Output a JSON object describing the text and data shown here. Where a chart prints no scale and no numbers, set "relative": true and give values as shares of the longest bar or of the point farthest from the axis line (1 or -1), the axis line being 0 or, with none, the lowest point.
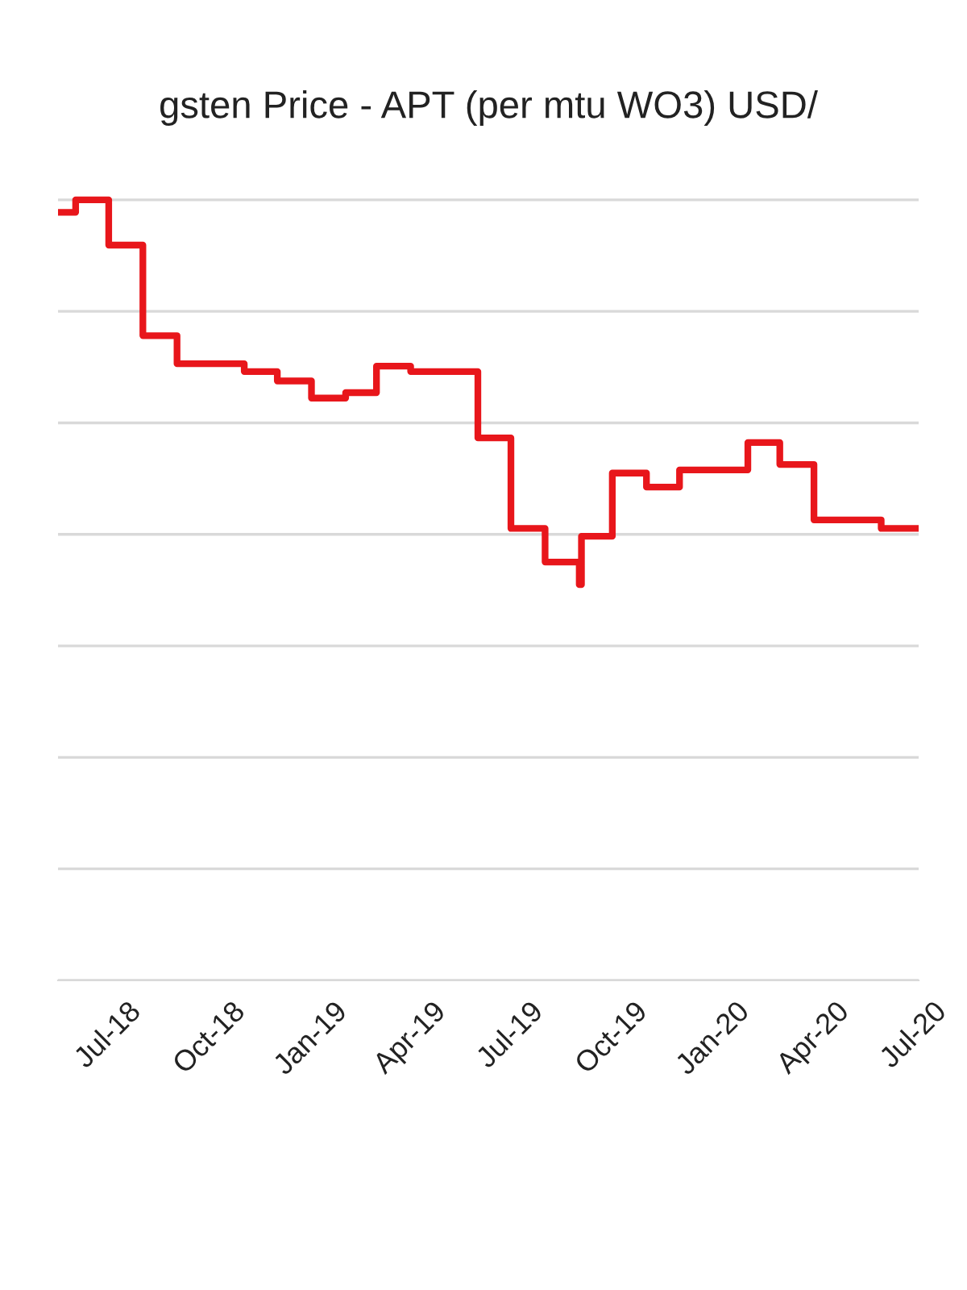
{
  "chart_data": {
    "type": "step",
    "title": "gsten Price - APT (per mtu WO3) USD/",
    "relative": true,
    "x": [
      "2018-05-16",
      "2018-06-01",
      "2018-07-01",
      "2018-08-01",
      "2018-09-01",
      "2018-11-01",
      "2018-12-01",
      "2019-01-01",
      "2019-02-01",
      "2019-03-01",
      "2019-04-01",
      "2019-06-01",
      "2019-07-01",
      "2019-08-01",
      "2019-09-01",
      "2019-09-03",
      "2019-10-01",
      "2019-11-01",
      "2019-12-01",
      "2020-02-01",
      "2020-03-01",
      "2020-04-01",
      "2020-06-01",
      "2020-07-05"
    ],
    "series": [
      {
        "color": "#e8161b",
        "values": [
          0.984,
          1,
          0.942,
          0.826,
          0.79,
          0.78,
          0.768,
          0.746,
          0.753,
          0.787,
          0.78,
          0.695,
          0.579,
          0.536,
          0.507,
          0.569,
          0.65,
          0.632,
          0.654,
          0.689,
          0.661,
          0.59,
          0.579,
          0.579
        ]
      }
    ],
    "xlim": [
      "2018-05-16",
      "2020-07-05"
    ],
    "xticks": [
      {
        "value": "2018-07-01",
        "label": "Jul-18"
      },
      {
        "value": "2018-10-01",
        "label": "Oct-18"
      },
      {
        "value": "2019-01-01",
        "label": "Jan-19"
      },
      {
        "value": "2019-04-01",
        "label": "Apr-19"
      },
      {
        "value": "2019-07-01",
        "label": "Jul-19"
      },
      {
        "value": "2019-10-01",
        "label": "Oct-19"
      },
      {
        "value": "2020-01-01",
        "label": "Jan-20"
      },
      {
        "value": "2020-04-01",
        "label": "Apr-20"
      },
      {
        "value": "2020-07-01",
        "label": "Jul-20"
      }
    ],
    "grid": "y",
    "tick_labels": "x",
    "marker": "none",
    "line_style": "solid"
  }
}
